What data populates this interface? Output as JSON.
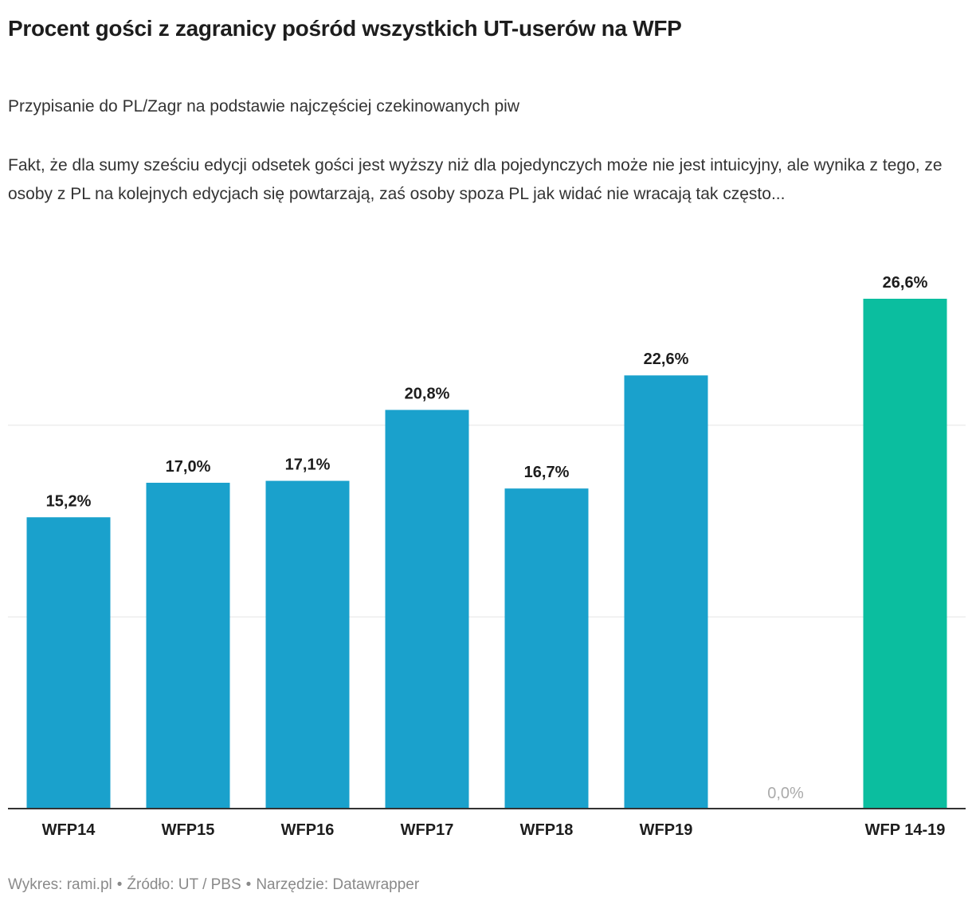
{
  "title": "Procent gości z zagranicy pośród wszystkich UT-userów na WFP",
  "subtitle": "Przypisanie do PL/Zagr na podstawie najczęściej czekinowanych piw",
  "description": "Fakt, że dla sumy sześciu edycji odsetek gości jest wyższy niż dla pojedynczych może nie jest intuicyjny, ale wynika z tego, ze osoby z PL na kolejnych edycjach się powtarzają, zaś osoby spoza PL jak widać nie wracają tak często...",
  "footer": {
    "chart_by": "Wykres: rami.pl",
    "source": "Źródło: UT / PBS",
    "tool": "Narzędzie: Datawrapper",
    "separator": "•"
  },
  "colors": {
    "bar_default": "#1aa1cc",
    "bar_highlight": "#0bbe9f",
    "grid": "#e5e5e5",
    "axis": "#333333",
    "zero_label": "#aaaaaa"
  },
  "chart_data": {
    "type": "bar",
    "title": "Procent gości z zagranicy pośród wszystkich UT-userów na WFP",
    "xlabel": "",
    "ylabel": "",
    "ylim": [
      0,
      26.6
    ],
    "grid": true,
    "gridlines": [
      0,
      10,
      20
    ],
    "categories": [
      "WFP14",
      "WFP15",
      "WFP16",
      "WFP17",
      "WFP18",
      "WFP19",
      "",
      "WFP 14-19"
    ],
    "values": [
      15.2,
      17.0,
      17.1,
      20.8,
      16.7,
      22.6,
      0.0,
      26.6
    ],
    "value_labels": [
      "15,2%",
      "17,0%",
      "17,1%",
      "20,8%",
      "16,7%",
      "22,6%",
      "0,0%",
      "26,6%"
    ],
    "highlight": [
      false,
      false,
      false,
      false,
      false,
      false,
      false,
      true
    ]
  }
}
